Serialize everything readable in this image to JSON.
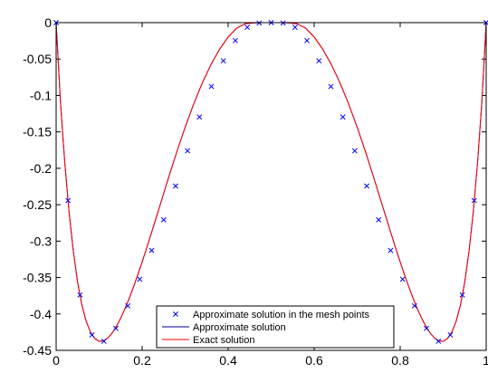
{
  "chart_data": {
    "type": "line",
    "xlim": [
      0,
      1
    ],
    "ylim": [
      -0.45,
      0
    ],
    "x_ticks": [
      0,
      0.2,
      0.4,
      0.6,
      0.8,
      1
    ],
    "x_tick_labels": [
      "0",
      "0.2",
      "0.4",
      "0.6",
      "0.8",
      "1"
    ],
    "y_ticks": [
      0,
      -0.05,
      -0.1,
      -0.15,
      -0.2,
      -0.25,
      -0.3,
      -0.35,
      -0.4,
      -0.45
    ],
    "y_tick_labels": [
      "0",
      "-0.05",
      "-0.1",
      "-0.15",
      "-0.2",
      "-0.25",
      "-0.3",
      "-0.35",
      "-0.4",
      "-0.45"
    ],
    "grid": false,
    "legend_position": "bottom-center",
    "series": [
      {
        "name": "Approximate solution in the mesh points",
        "style": "markers",
        "marker": "x",
        "color": "#0000ff",
        "x": [
          0,
          0.0278,
          0.0556,
          0.0833,
          0.1111,
          0.1389,
          0.1667,
          0.1944,
          0.2222,
          0.25,
          0.2778,
          0.3056,
          0.3333,
          0.3611,
          0.3889,
          0.4167,
          0.4444,
          0.4722,
          0.5,
          0.5278,
          0.5556,
          0.5833,
          0.6111,
          0.6389,
          0.6667,
          0.6944,
          0.7222,
          0.75,
          0.7778,
          0.8056,
          0.8333,
          0.8611,
          0.8889,
          0.9167,
          0.9444,
          0.9722,
          1
        ],
        "y": [
          0,
          -0.2442,
          -0.3739,
          -0.4288,
          -0.4375,
          -0.4198,
          -0.3889,
          -0.3523,
          -0.3128,
          -0.2707,
          -0.2243,
          -0.176,
          -0.1296,
          -0.0877,
          -0.0524,
          -0.0246,
          -0.0065,
          -0.0005,
          0,
          -0.0005,
          -0.0065,
          -0.0246,
          -0.0524,
          -0.0877,
          -0.1296,
          -0.176,
          -0.2243,
          -0.2707,
          -0.3128,
          -0.3523,
          -0.3889,
          -0.4198,
          -0.4375,
          -0.4288,
          -0.3739,
          -0.2442,
          0
        ]
      },
      {
        "name": "Approximate solution",
        "style": "line",
        "color": "#00008b",
        "x": [
          0,
          0.01,
          0.02,
          0.03,
          0.04,
          0.05,
          0.06,
          0.07,
          0.08,
          0.09,
          0.1,
          0.11,
          0.12,
          0.13,
          0.14,
          0.15,
          0.16,
          0.17,
          0.18,
          0.19,
          0.2,
          0.22,
          0.24,
          0.26,
          0.28,
          0.3,
          0.32,
          0.34,
          0.36,
          0.38,
          0.4,
          0.42,
          0.44,
          0.46,
          0.48,
          0.5,
          0.52,
          0.54,
          0.56,
          0.58,
          0.6,
          0.62,
          0.64,
          0.66,
          0.68,
          0.7,
          0.72,
          0.74,
          0.76,
          0.78,
          0.8,
          0.81,
          0.82,
          0.83,
          0.84,
          0.85,
          0.86,
          0.87,
          0.88,
          0.89,
          0.9,
          0.91,
          0.92,
          0.93,
          0.94,
          0.95,
          0.96,
          0.97,
          0.98,
          0.99,
          1
        ],
        "y": [
          0,
          -0.1087,
          -0.1916,
          -0.2595,
          -0.3141,
          -0.3566,
          -0.3883,
          -0.4103,
          -0.4252,
          -0.4338,
          -0.4375,
          -0.437,
          -0.4331,
          -0.4264,
          -0.4172,
          -0.4059,
          -0.3929,
          -0.3784,
          -0.3627,
          -0.346,
          -0.3287,
          -0.2918,
          -0.2537,
          -0.2155,
          -0.1785,
          -0.1436,
          -0.1114,
          -0.0826,
          -0.0576,
          -0.0366,
          -0.0197,
          -0.0075,
          -0.0015,
          -0.0003,
          0,
          0,
          0,
          -0.0003,
          -0.0015,
          -0.0075,
          -0.0197,
          -0.0366,
          -0.0576,
          -0.0826,
          -0.1114,
          -0.1436,
          -0.1785,
          -0.2155,
          -0.2537,
          -0.2918,
          -0.3287,
          -0.346,
          -0.3627,
          -0.3784,
          -0.3929,
          -0.4059,
          -0.4172,
          -0.4264,
          -0.4331,
          -0.437,
          -0.4375,
          -0.4338,
          -0.4252,
          -0.4103,
          -0.3883,
          -0.3566,
          -0.3141,
          -0.2595,
          -0.1916,
          -0.1087,
          0
        ]
      },
      {
        "name": "Exact solution",
        "style": "line",
        "color": "#ff0000",
        "x": [
          0,
          0.01,
          0.02,
          0.03,
          0.04,
          0.05,
          0.06,
          0.07,
          0.08,
          0.09,
          0.1,
          0.11,
          0.12,
          0.13,
          0.14,
          0.15,
          0.16,
          0.17,
          0.18,
          0.19,
          0.2,
          0.22,
          0.24,
          0.26,
          0.28,
          0.3,
          0.32,
          0.34,
          0.36,
          0.38,
          0.4,
          0.42,
          0.44,
          0.46,
          0.48,
          0.5,
          0.52,
          0.54,
          0.56,
          0.58,
          0.6,
          0.62,
          0.64,
          0.66,
          0.68,
          0.7,
          0.72,
          0.74,
          0.76,
          0.78,
          0.8,
          0.81,
          0.82,
          0.83,
          0.84,
          0.85,
          0.86,
          0.87,
          0.88,
          0.89,
          0.9,
          0.91,
          0.92,
          0.93,
          0.94,
          0.95,
          0.96,
          0.97,
          0.98,
          0.99,
          1
        ],
        "y": [
          0,
          -0.1087,
          -0.1916,
          -0.2595,
          -0.3141,
          -0.3566,
          -0.3883,
          -0.4103,
          -0.4252,
          -0.4338,
          -0.4375,
          -0.437,
          -0.4331,
          -0.4264,
          -0.4172,
          -0.4059,
          -0.3929,
          -0.3784,
          -0.3627,
          -0.346,
          -0.3287,
          -0.2918,
          -0.2537,
          -0.2155,
          -0.1785,
          -0.1436,
          -0.1114,
          -0.0826,
          -0.0576,
          -0.0366,
          -0.0197,
          -0.0075,
          -0.0015,
          -0.0003,
          0,
          0,
          0,
          -0.0003,
          -0.0015,
          -0.0075,
          -0.0197,
          -0.0366,
          -0.0576,
          -0.0826,
          -0.1114,
          -0.1436,
          -0.1785,
          -0.2155,
          -0.2537,
          -0.2918,
          -0.3287,
          -0.346,
          -0.3627,
          -0.3784,
          -0.3929,
          -0.4059,
          -0.4172,
          -0.4264,
          -0.4331,
          -0.437,
          -0.4375,
          -0.4338,
          -0.4252,
          -0.4103,
          -0.3883,
          -0.3566,
          -0.3141,
          -0.2595,
          -0.1916,
          -0.1087,
          0
        ]
      }
    ]
  }
}
